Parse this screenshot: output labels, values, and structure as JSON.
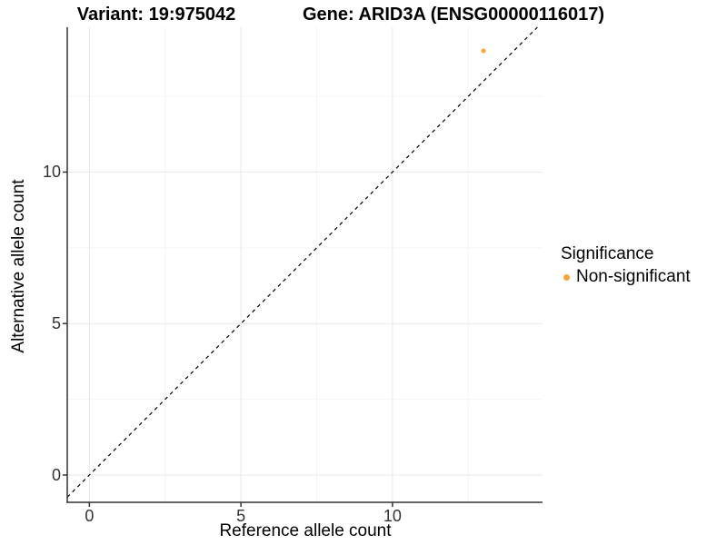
{
  "titles": {
    "variant": "Variant: 19:975042",
    "gene": "Gene: ARID3A (ENSG00000116017)"
  },
  "axes": {
    "x_label": "Reference allele count",
    "y_label": "Alternative allele count"
  },
  "legend": {
    "title": "Significance",
    "items": [
      {
        "label": "Non-significant",
        "color": "#FAA43A"
      }
    ]
  },
  "colors": {
    "background": "#FFFFFF",
    "grid_major": "#E8E8E8",
    "grid_minor": "#F4F4F4",
    "axis_line": "#333333",
    "tick_mark": "#333333",
    "identity_line": "#000000",
    "point": "#FAA43A"
  },
  "chart_data": {
    "type": "scatter",
    "title_left": "Variant: 19:975042",
    "title_right": "Gene: ARID3A (ENSG00000116017)",
    "xlabel": "Reference allele count",
    "ylabel": "Alternative allele count",
    "xlim": [
      -0.73,
      14.95
    ],
    "ylim": [
      -0.9,
      14.78
    ],
    "x_major_ticks": [
      0,
      5,
      10
    ],
    "y_major_ticks": [
      0,
      5,
      10
    ],
    "x_minor_ticks": [
      2.5,
      7.5,
      12.5
    ],
    "y_minor_ticks": [
      2.5,
      7.5,
      12.5
    ],
    "grid": true,
    "legend_position": "right",
    "legend_title": "Significance",
    "reference_line": {
      "kind": "identity",
      "equation": "y = x",
      "style": "dashed",
      "color": "#000000"
    },
    "series": [
      {
        "name": "Non-significant",
        "color": "#FAA43A",
        "points": [
          {
            "x": 13,
            "y": 14
          }
        ]
      }
    ]
  }
}
